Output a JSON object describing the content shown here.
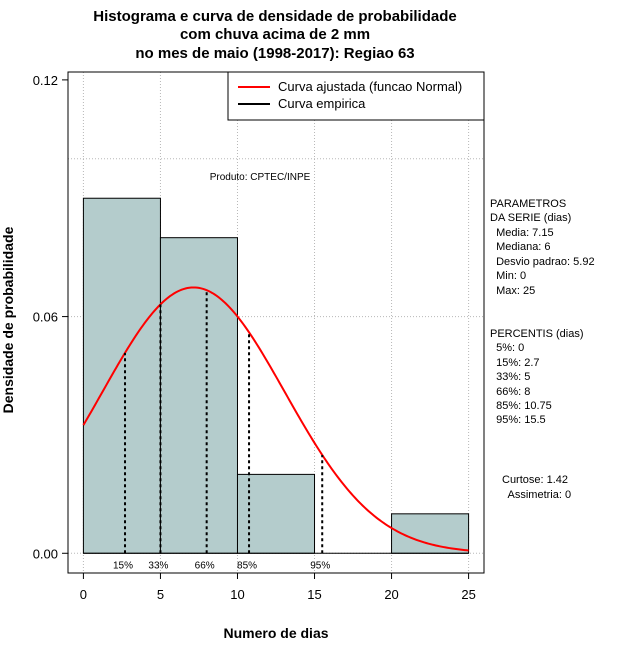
{
  "chart_data": {
    "type": "bar",
    "title_lines": [
      "Histograma e curva de densidade de probabilidade",
      "com chuva acima de 2 mm",
      "no mes de maio (1998-2017): Regiao 63"
    ],
    "xlabel": "Numero de dias",
    "ylabel": "Densidade de probabilidade",
    "xlim": [
      -1,
      26
    ],
    "ylim": [
      -0.005,
      0.122
    ],
    "x_ticks": [
      0,
      5,
      10,
      15,
      20,
      25
    ],
    "x_tick_labels": [
      "0",
      "5",
      "10",
      "15",
      "20",
      "25"
    ],
    "y_ticks": [
      0.0,
      0.06,
      0.12
    ],
    "y_tick_labels": [
      "0.00",
      "0.06",
      "0.12"
    ],
    "bins": [
      {
        "start": 0,
        "end": 5,
        "density": 0.09
      },
      {
        "start": 5,
        "end": 10,
        "density": 0.08
      },
      {
        "start": 10,
        "end": 15,
        "density": 0.02
      },
      {
        "start": 15,
        "end": 20,
        "density": 0.0
      },
      {
        "start": 20,
        "end": 25,
        "density": 0.01
      }
    ],
    "normal_fit": {
      "mean": 7.15,
      "sd": 5.92,
      "x_from": 0,
      "x_to": 25
    },
    "percentile_markers": [
      {
        "label": "15%",
        "x": 2.7
      },
      {
        "label": "33%",
        "x": 5
      },
      {
        "label": "66%",
        "x": 8
      },
      {
        "label": "85%",
        "x": 10.75
      },
      {
        "label": "95%",
        "x": 15.5
      }
    ],
    "legend": [
      {
        "label": "Curva ajustada (funcao Normal)",
        "color": "#ff0000"
      },
      {
        "label": "Curva empirica",
        "color": "#000000"
      }
    ],
    "product_note": "Produto: CPTEC/INPE",
    "grid_y": [
      0.0,
      0.06,
      0.1
    ],
    "grid_x": [
      0,
      5,
      10,
      15,
      20,
      25
    ],
    "bar_color": "#b4cccc",
    "curve_color": "#ff0000",
    "side_parametros": [
      "PARAMETROS",
      "DA SERIE (dias)",
      "  Media: 7.15",
      "  Mediana: 6",
      "  Desvio padrao: 5.92",
      "  Min: 0",
      "  Max: 25"
    ],
    "side_percentis": [
      "PERCENTIS (dias)",
      "  5%: 0",
      "  15%: 2.7",
      "  33%: 5",
      "  66%: 8",
      "  85%: 10.75",
      "  95%: 15.5"
    ],
    "side_stats": [
      "Curtose: 1.42",
      "  Assimetria: 0"
    ]
  }
}
